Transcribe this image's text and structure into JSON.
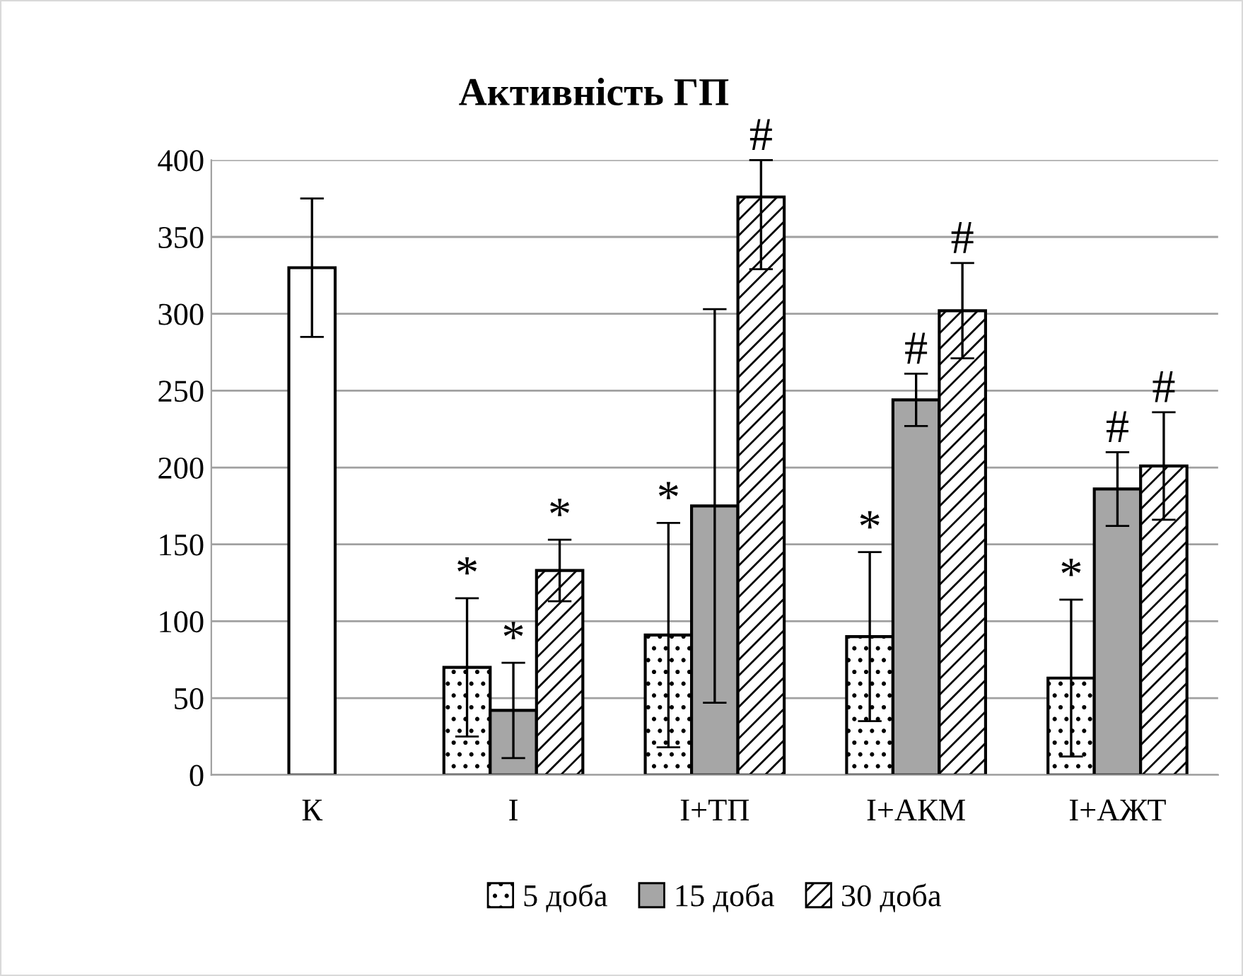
{
  "chart_data": {
    "type": "bar",
    "title": "Активність ГП",
    "categories": [
      "К",
      "І",
      "І+ТП",
      "І+АКМ",
      "І+АЖТ"
    ],
    "series": [
      {
        "name": "5 доба",
        "color": "#000000",
        "values": [
          null,
          70,
          91,
          90,
          63
        ],
        "errors": [
          null,
          45,
          73,
          55,
          51
        ]
      },
      {
        "name": "15 доба",
        "color": "#a6a6a6",
        "colors": [
          "#ffffff",
          "#a6a6a6",
          "#a6a6a6",
          "#a6a6a6",
          "#a6a6a6"
        ],
        "values": [
          330,
          42,
          175,
          244,
          186
        ],
        "errors": [
          45,
          31,
          128,
          17,
          24
        ]
      },
      {
        "name": "30 доба",
        "color": "#000000",
        "values": [
          null,
          133,
          376,
          302,
          201
        ],
        "errors": [
          null,
          20,
          [
            329,
            400
          ],
          31,
          35
        ]
      }
    ],
    "ylim": [
      0,
      400
    ],
    "yticks": [
      0,
      50,
      100,
      150,
      200,
      250,
      300,
      350,
      400
    ],
    "grid": "y",
    "legend": "bottom",
    "annotations": [
      {
        "text": "*",
        "y": 115
      },
      {
        "text": "*",
        "y": 73
      },
      {
        "text": "*",
        "y": 153
      },
      {
        "text": "*",
        "y": 164
      },
      {
        "text": "#",
        "y": 400
      },
      {
        "text": "*",
        "y": 145
      },
      {
        "text": "#",
        "y": 261
      },
      {
        "text": "#",
        "y": 333
      },
      {
        "text": "*",
        "y": 114
      },
      {
        "text": "#",
        "y": 210
      },
      {
        "text": "#",
        "y": 236
      }
    ]
  }
}
